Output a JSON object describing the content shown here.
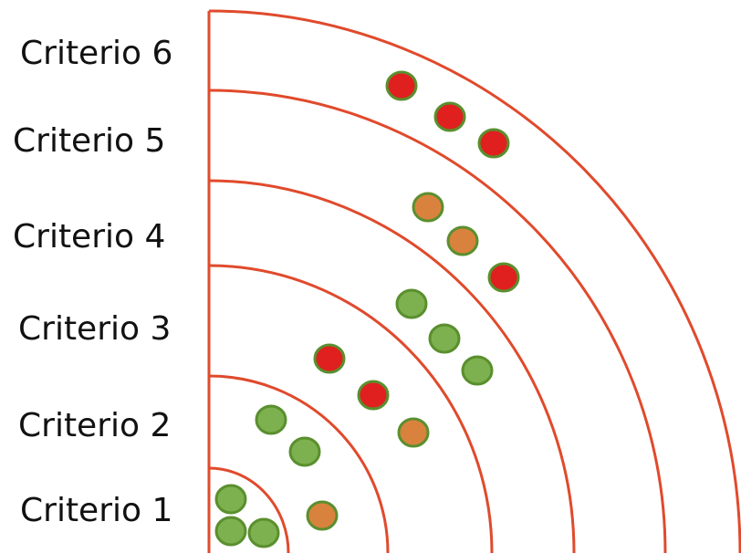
{
  "criteria": [
    {
      "label": "Criterio 1"
    },
    {
      "label": "Criterio 2"
    },
    {
      "label": "Criterio 3"
    },
    {
      "label": "Criterio 4"
    },
    {
      "label": "Criterio 5"
    },
    {
      "label": "Criterio 6"
    }
  ],
  "colors": {
    "ring": "#e04a2c",
    "dot_stroke": "#5a8f2e",
    "green": "#7db04e",
    "orange": "#d9823e",
    "red": "#e01f1f"
  },
  "dots_per_band": [
    [
      "green",
      "green",
      "green",
      "orange"
    ],
    [
      "green",
      "green",
      "red",
      "red",
      "orange"
    ],
    [
      "green",
      "green",
      "green"
    ],
    [
      "orange",
      "orange",
      "red"
    ],
    [
      "red",
      "red",
      "red"
    ],
    []
  ]
}
